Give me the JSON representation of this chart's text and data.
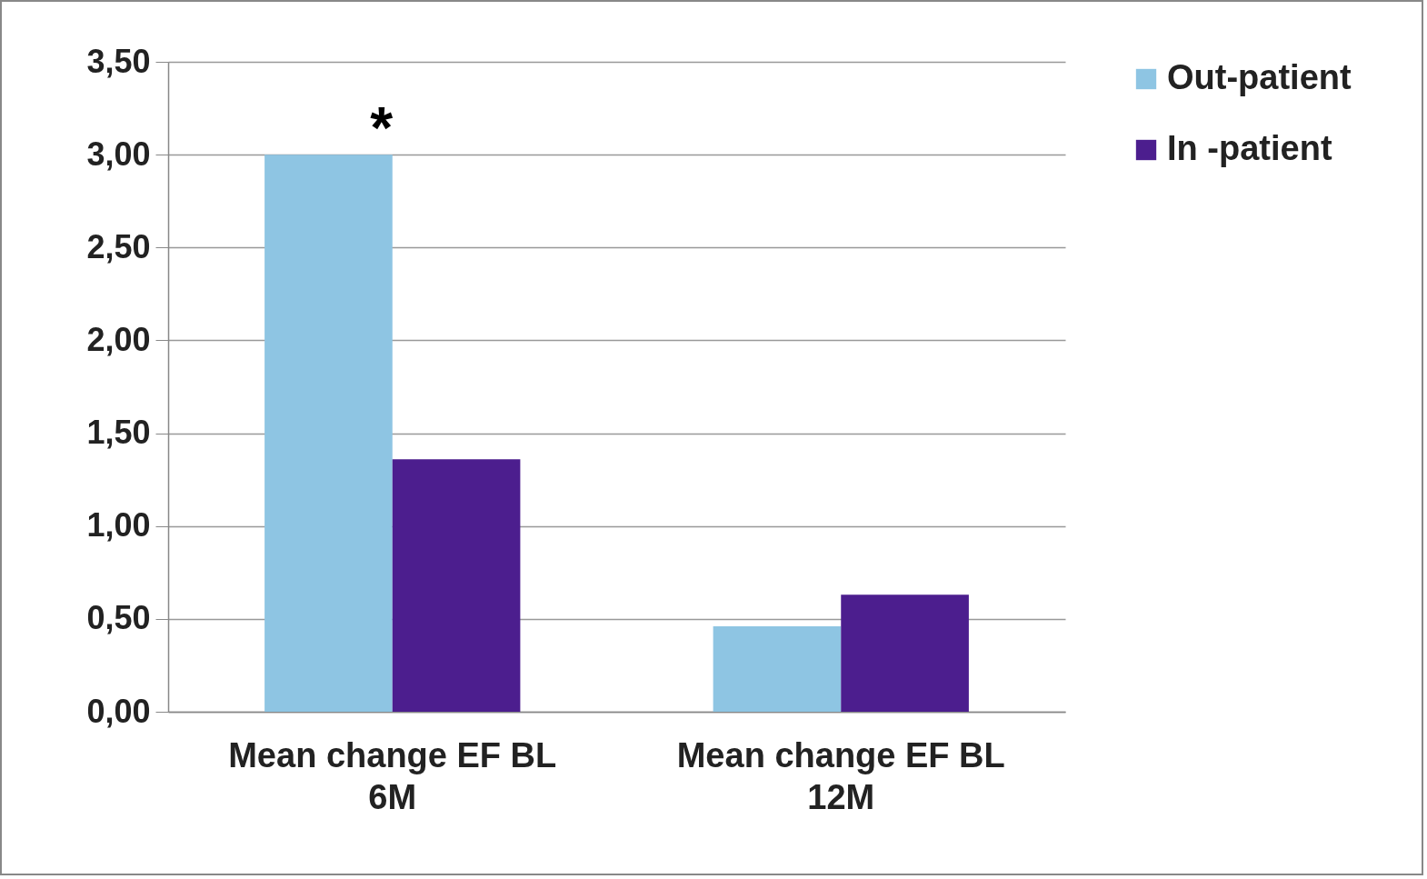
{
  "chart_data": {
    "type": "bar",
    "categories": [
      "Mean change EF  BL 6M",
      "Mean change EF  BL 12M"
    ],
    "series": [
      {
        "name": "Out-patient",
        "color": "#8ec5e3",
        "values": [
          3.0,
          0.46
        ]
      },
      {
        "name": "In -patient",
        "color": "#4c1e8e",
        "values": [
          1.36,
          0.63
        ]
      }
    ],
    "ylim": [
      0,
      3.5
    ],
    "yticks": [
      {
        "value": 0,
        "label": "0,00"
      },
      {
        "value": 0.5,
        "label": "0,50"
      },
      {
        "value": 1,
        "label": "1,00"
      },
      {
        "value": 1.5,
        "label": "1,50"
      },
      {
        "value": 2,
        "label": "2,00"
      },
      {
        "value": 2.5,
        "label": "2,50"
      },
      {
        "value": 3,
        "label": "3,00"
      },
      {
        "value": 3.5,
        "label": "3,50"
      }
    ],
    "grid": "y",
    "legend": "right",
    "annotations": [
      {
        "text": "*",
        "x": "Mean change EF  BL 6M",
        "y": 3.0
      }
    ]
  }
}
